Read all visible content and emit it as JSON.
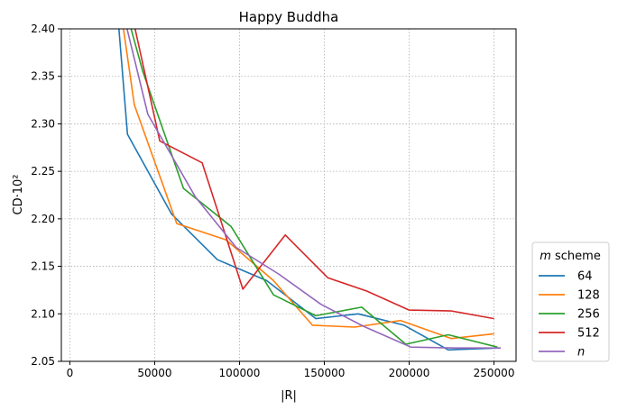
{
  "chart_data": {
    "type": "line",
    "title": "Happy Buddha",
    "xlabel": "|R|",
    "ylabel": "CD·10²",
    "xlim": [
      -5000,
      263000
    ],
    "ylim": [
      2.05,
      2.4
    ],
    "xticks": [
      0,
      50000,
      100000,
      150000,
      200000,
      250000
    ],
    "yticks": [
      2.05,
      2.1,
      2.15,
      2.2,
      2.25,
      2.3,
      2.35,
      2.4
    ],
    "xtick_labels": [
      "0",
      "50000",
      "100000",
      "150000",
      "200000",
      "250000"
    ],
    "ytick_labels": [
      "2.05",
      "2.10",
      "2.15",
      "2.20",
      "2.25",
      "2.30",
      "2.35",
      "2.40"
    ],
    "grid": true,
    "legend": {
      "title_italic": "m",
      "title_rest": " scheme",
      "placement": "outside-right-bottom"
    },
    "series": [
      {
        "name": "64",
        "color": "#1f77b4",
        "x": [
          28000,
          34000,
          60000,
          87000,
          116000,
          145000,
          170000,
          197000,
          223000,
          253000
        ],
        "y": [
          2.42,
          2.289,
          2.205,
          2.157,
          2.135,
          2.095,
          2.1,
          2.088,
          2.062,
          2.064
        ]
      },
      {
        "name": "128",
        "color": "#ff7f0e",
        "x": [
          30000,
          38000,
          63000,
          92000,
          120000,
          143000,
          168000,
          195000,
          225000,
          250000
        ],
        "y": [
          2.42,
          2.32,
          2.195,
          2.178,
          2.135,
          2.088,
          2.086,
          2.093,
          2.074,
          2.079
        ]
      },
      {
        "name": "256",
        "color": "#2ca02c",
        "x": [
          33000,
          43000,
          67000,
          95000,
          120000,
          145000,
          172000,
          198000,
          223000,
          252000
        ],
        "y": [
          2.42,
          2.355,
          2.232,
          2.192,
          2.12,
          2.098,
          2.107,
          2.068,
          2.078,
          2.065
        ]
      },
      {
        "name": "512",
        "color": "#d62728",
        "x": [
          36000,
          53000,
          78000,
          102000,
          127000,
          152000,
          175000,
          200000,
          225000,
          250000
        ],
        "y": [
          2.42,
          2.282,
          2.259,
          2.126,
          2.183,
          2.138,
          2.124,
          2.104,
          2.103,
          2.095
        ]
      },
      {
        "name": "n",
        "color": "#9467bd",
        "italic": true,
        "x": [
          31000,
          46000,
          74000,
          98000,
          123000,
          148000,
          173000,
          201000,
          227000,
          254000
        ],
        "y": [
          2.42,
          2.31,
          2.223,
          2.17,
          2.142,
          2.11,
          2.087,
          2.065,
          2.064,
          2.064
        ]
      }
    ]
  }
}
